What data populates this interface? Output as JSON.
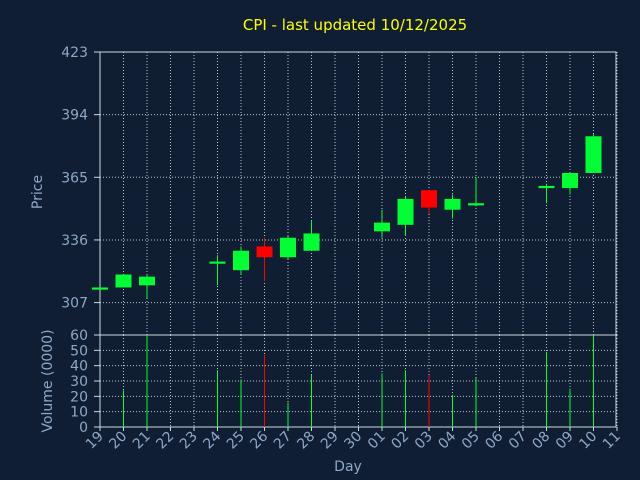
{
  "chart_data": [
    {
      "type": "candlestick",
      "title": "CPI - last updated 10/12/2025",
      "ylabel": "Price",
      "ylim": [
        292,
        423
      ],
      "yticks": [
        307,
        336,
        365,
        394,
        423
      ],
      "x_tick_labels": [
        "19",
        "20",
        "21",
        "22",
        "23",
        "24",
        "25",
        "26",
        "27",
        "28",
        "29",
        "30",
        "01",
        "02",
        "03",
        "04",
        "05",
        "06",
        "07",
        "08",
        "09",
        "10",
        "11"
      ],
      "grid": true,
      "up_color": "#00ff33",
      "down_color": "#ff0000",
      "series": [
        {
          "day": "19",
          "open": 313,
          "high": 314,
          "low": 313,
          "close": 314,
          "volume": 0
        },
        {
          "day": "20",
          "open": 314,
          "high": 320,
          "low": 314,
          "close": 320,
          "volume": 24
        },
        {
          "day": "21",
          "open": 315,
          "high": 320,
          "low": 309,
          "close": 319,
          "volume": 60
        },
        {
          "day": "24",
          "open": 325,
          "high": 329,
          "low": 315,
          "close": 326,
          "volume": 37
        },
        {
          "day": "25",
          "open": 322,
          "high": 333,
          "low": 320,
          "close": 331,
          "volume": 31
        },
        {
          "day": "26",
          "open": 333,
          "high": 337,
          "low": 317,
          "close": 328,
          "volume": 47
        },
        {
          "day": "27",
          "open": 328,
          "high": 338,
          "low": 327,
          "close": 337,
          "volume": 16
        },
        {
          "day": "28",
          "open": 331,
          "high": 345,
          "low": 331,
          "close": 339,
          "volume": 34
        },
        {
          "day": "01",
          "open": 340,
          "high": 350,
          "low": 337,
          "close": 344,
          "volume": 35
        },
        {
          "day": "02",
          "open": 343,
          "high": 356,
          "low": 338,
          "close": 355,
          "volume": 37
        },
        {
          "day": "03",
          "open": 359,
          "high": 359,
          "low": 348,
          "close": 351,
          "volume": 34
        },
        {
          "day": "04",
          "open": 350,
          "high": 357,
          "low": 346,
          "close": 355,
          "volume": 21
        },
        {
          "day": "05",
          "open": 352,
          "high": 365,
          "low": 352,
          "close": 353,
          "volume": 32
        },
        {
          "day": "08",
          "open": 360,
          "high": 362,
          "low": 353,
          "close": 361,
          "volume": 49
        },
        {
          "day": "09",
          "open": 360,
          "high": 367,
          "low": 357,
          "close": 367,
          "volume": 25
        },
        {
          "day": "10",
          "open": 367,
          "high": 385,
          "low": 367,
          "close": 384,
          "volume": 60
        }
      ]
    },
    {
      "type": "bar",
      "ylabel": "Volume (0000)",
      "xlabel": "Day",
      "ylim": [
        0,
        60
      ],
      "yticks": [
        0,
        10,
        20,
        30,
        40,
        50,
        60
      ]
    }
  ]
}
